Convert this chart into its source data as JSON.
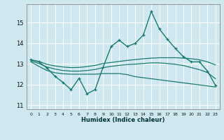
{
  "xlabel": "Humidex (Indice chaleur)",
  "bg_color": "#cfe8f0",
  "grid_color": "#ffffff",
  "line_color": "#1a7a6e",
  "xlim": [
    -0.5,
    23.5
  ],
  "ylim": [
    10.8,
    15.9
  ],
  "yticks": [
    11,
    12,
    13,
    14,
    15
  ],
  "xticks": [
    0,
    1,
    2,
    3,
    4,
    5,
    6,
    7,
    8,
    9,
    10,
    11,
    12,
    13,
    14,
    15,
    16,
    17,
    18,
    19,
    20,
    21,
    22,
    23
  ],
  "series_marked": {
    "x": [
      0,
      1,
      2,
      3,
      4,
      5,
      6,
      7,
      8,
      9,
      10,
      11,
      12,
      13,
      14,
      15,
      16,
      17,
      18,
      19,
      20,
      21,
      22,
      23
    ],
    "y": [
      13.2,
      13.1,
      12.8,
      12.4,
      12.1,
      11.75,
      12.3,
      11.55,
      11.75,
      12.85,
      13.85,
      14.15,
      13.85,
      14.0,
      14.4,
      15.55,
      14.7,
      14.2,
      13.75,
      13.35,
      13.1,
      13.1,
      12.65,
      11.95
    ]
  },
  "series_smooth1": {
    "x": [
      0,
      1,
      2,
      3,
      4,
      5,
      6,
      7,
      8,
      9,
      10,
      11,
      12,
      13,
      14,
      15,
      16,
      17,
      18,
      19,
      20,
      21,
      22,
      23
    ],
    "y": [
      13.2,
      13.12,
      12.98,
      12.9,
      12.85,
      12.82,
      12.83,
      12.87,
      12.93,
      13.02,
      13.07,
      13.12,
      13.17,
      13.21,
      13.25,
      13.28,
      13.3,
      13.3,
      13.3,
      13.28,
      13.25,
      13.2,
      13.1,
      12.95
    ]
  },
  "series_smooth2": {
    "x": [
      0,
      1,
      2,
      3,
      4,
      5,
      6,
      7,
      8,
      9,
      10,
      11,
      12,
      13,
      14,
      15,
      16,
      17,
      18,
      19,
      20,
      21,
      22,
      23
    ],
    "y": [
      13.15,
      13.02,
      12.85,
      12.75,
      12.68,
      12.65,
      12.65,
      12.68,
      12.73,
      12.82,
      12.88,
      12.93,
      12.97,
      12.99,
      13.02,
      13.05,
      13.05,
      13.02,
      12.98,
      12.92,
      12.82,
      12.72,
      12.58,
      12.28
    ]
  },
  "series_lower": {
    "x": [
      0,
      1,
      2,
      3,
      4,
      5,
      6,
      7,
      8,
      9,
      10,
      11,
      12,
      13,
      14,
      15,
      16,
      17,
      18,
      19,
      20,
      21,
      22,
      23
    ],
    "y": [
      13.1,
      12.88,
      12.68,
      12.57,
      12.52,
      12.5,
      12.5,
      12.5,
      12.5,
      12.53,
      12.53,
      12.53,
      12.48,
      12.38,
      12.33,
      12.28,
      12.23,
      12.18,
      12.13,
      12.08,
      12.03,
      11.98,
      11.93,
      11.88
    ]
  }
}
